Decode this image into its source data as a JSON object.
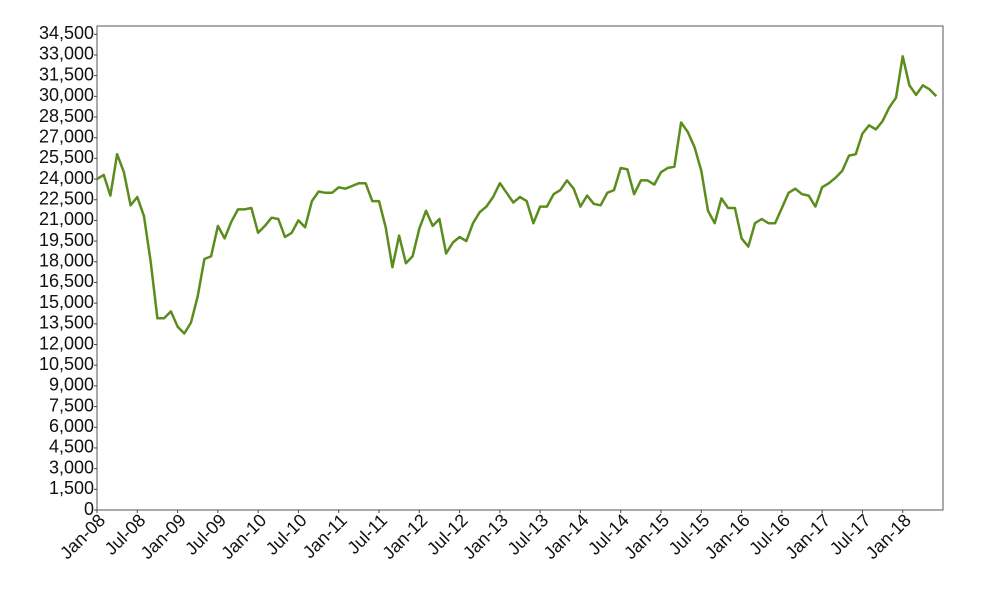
{
  "chart_data": {
    "type": "line",
    "color": "#5b8c1e",
    "x": [
      "2008-01",
      "2008-02",
      "2008-03",
      "2008-04",
      "2008-05",
      "2008-06",
      "2008-07",
      "2008-08",
      "2008-09",
      "2008-10",
      "2008-11",
      "2008-12",
      "2009-01",
      "2009-02",
      "2009-03",
      "2009-04",
      "2009-05",
      "2009-06",
      "2009-07",
      "2009-08",
      "2009-09",
      "2009-10",
      "2009-11",
      "2009-12",
      "2010-01",
      "2010-02",
      "2010-03",
      "2010-04",
      "2010-05",
      "2010-06",
      "2010-07",
      "2010-08",
      "2010-09",
      "2010-10",
      "2010-11",
      "2010-12",
      "2011-01",
      "2011-02",
      "2011-03",
      "2011-04",
      "2011-05",
      "2011-06",
      "2011-07",
      "2011-08",
      "2011-09",
      "2011-10",
      "2011-11",
      "2011-12",
      "2012-01",
      "2012-02",
      "2012-03",
      "2012-04",
      "2012-05",
      "2012-06",
      "2012-07",
      "2012-08",
      "2012-09",
      "2012-10",
      "2012-11",
      "2012-12",
      "2013-01",
      "2013-02",
      "2013-03",
      "2013-04",
      "2013-05",
      "2013-06",
      "2013-07",
      "2013-08",
      "2013-09",
      "2013-10",
      "2013-11",
      "2013-12",
      "2014-01",
      "2014-02",
      "2014-03",
      "2014-04",
      "2014-05",
      "2014-06",
      "2014-07",
      "2014-08",
      "2014-09",
      "2014-10",
      "2014-11",
      "2014-12",
      "2015-01",
      "2015-02",
      "2015-03",
      "2015-04",
      "2015-05",
      "2015-06",
      "2015-07",
      "2015-08",
      "2015-09",
      "2015-10",
      "2015-11",
      "2015-12",
      "2016-01",
      "2016-02",
      "2016-03",
      "2016-04",
      "2016-05",
      "2016-06",
      "2016-07",
      "2016-08",
      "2016-09",
      "2016-10",
      "2016-11",
      "2016-12",
      "2017-01",
      "2017-02",
      "2017-03",
      "2017-04",
      "2017-05",
      "2017-06",
      "2017-07",
      "2017-08",
      "2017-09",
      "2017-10",
      "2017-11",
      "2017-12",
      "2018-01",
      "2018-02",
      "2018-03",
      "2018-04",
      "2018-05",
      "2018-06"
    ],
    "values": [
      24000,
      24300,
      22800,
      25800,
      24500,
      22100,
      22700,
      21300,
      18000,
      13900,
      13900,
      14400,
      13300,
      12800,
      13600,
      15500,
      18200,
      18400,
      20600,
      19700,
      20900,
      21800,
      21800,
      21900,
      20100,
      20600,
      21200,
      21100,
      19800,
      20100,
      21000,
      20500,
      22400,
      23100,
      23000,
      23000,
      23400,
      23300,
      23500,
      23700,
      23700,
      22400,
      22400,
      20500,
      17600,
      19900,
      17900,
      18400,
      20400,
      21700,
      20600,
      21100,
      18600,
      19400,
      19800,
      19500,
      20800,
      21600,
      22000,
      22700,
      23700,
      23000,
      22300,
      22700,
      22400,
      20800,
      22000,
      22000,
      22900,
      23200,
      23900,
      23300,
      22000,
      22800,
      22200,
      22100,
      23000,
      23200,
      24800,
      24700,
      22900,
      23900,
      23900,
      23600,
      24500,
      24800,
      24900,
      28100,
      27400,
      26300,
      24600,
      21700,
      20800,
      22600,
      21900,
      21900,
      19700,
      19100,
      20800,
      21100,
      20800,
      20800,
      21900,
      23000,
      23300,
      22900,
      22800,
      22000,
      23400,
      23700,
      24100,
      24600,
      25700,
      25800,
      27300,
      27900,
      27600,
      28200,
      29200,
      29900,
      32900,
      30800,
      30100,
      30800,
      30500,
      30000
    ],
    "xlim": [
      "2008-01",
      "2018-07"
    ],
    "xticks": [
      {
        "value": "2008-01",
        "label": "Jan-08"
      },
      {
        "value": "2008-07",
        "label": "Jul-08"
      },
      {
        "value": "2009-01",
        "label": "Jan-09"
      },
      {
        "value": "2009-07",
        "label": "Jul-09"
      },
      {
        "value": "2010-01",
        "label": "Jan-10"
      },
      {
        "value": "2010-07",
        "label": "Jul-10"
      },
      {
        "value": "2011-01",
        "label": "Jan-11"
      },
      {
        "value": "2011-07",
        "label": "Jul-11"
      },
      {
        "value": "2012-01",
        "label": "Jan-12"
      },
      {
        "value": "2012-07",
        "label": "Jul-12"
      },
      {
        "value": "2013-01",
        "label": "Jan-13"
      },
      {
        "value": "2013-07",
        "label": "Jul-13"
      },
      {
        "value": "2014-01",
        "label": "Jan-14"
      },
      {
        "value": "2014-07",
        "label": "Jul-14"
      },
      {
        "value": "2015-01",
        "label": "Jan-15"
      },
      {
        "value": "2015-07",
        "label": "Jul-15"
      },
      {
        "value": "2016-01",
        "label": "Jan-16"
      },
      {
        "value": "2016-07",
        "label": "Jul-16"
      },
      {
        "value": "2017-01",
        "label": "Jan-17"
      },
      {
        "value": "2017-07",
        "label": "Jul-17"
      },
      {
        "value": "2018-01",
        "label": "Jan-18"
      }
    ],
    "ylim": [
      0,
      35100
    ],
    "yticks": [
      0,
      {
        "value": 1500,
        "label": "1,500"
      },
      {
        "value": 3000,
        "label": "3,000"
      },
      {
        "value": 4500,
        "label": "4,500"
      },
      {
        "value": 6000,
        "label": "6,000"
      },
      {
        "value": 7500,
        "label": "7,500"
      },
      {
        "value": 9000,
        "label": "9,000"
      },
      {
        "value": 10500,
        "label": "10,500"
      },
      {
        "value": 12000,
        "label": "12,000"
      },
      {
        "value": 13500,
        "label": "13,500"
      },
      {
        "value": 15000,
        "label": "15,000"
      },
      {
        "value": 16500,
        "label": "16,500"
      },
      {
        "value": 18000,
        "label": "18,000"
      },
      {
        "value": 19500,
        "label": "19,500"
      },
      {
        "value": 21000,
        "label": "21,000"
      },
      {
        "value": 22500,
        "label": "22,500"
      },
      {
        "value": 24000,
        "label": "24,000"
      },
      {
        "value": 25500,
        "label": "25,500"
      },
      {
        "value": 27000,
        "label": "27,000"
      },
      {
        "value": 28500,
        "label": "28,500"
      },
      {
        "value": 30000,
        "label": "30,000"
      },
      {
        "value": 31500,
        "label": "31,500"
      },
      {
        "value": 33000,
        "label": "33,000"
      },
      {
        "value": 34500,
        "label": "34,500"
      }
    ],
    "grid": false
  }
}
